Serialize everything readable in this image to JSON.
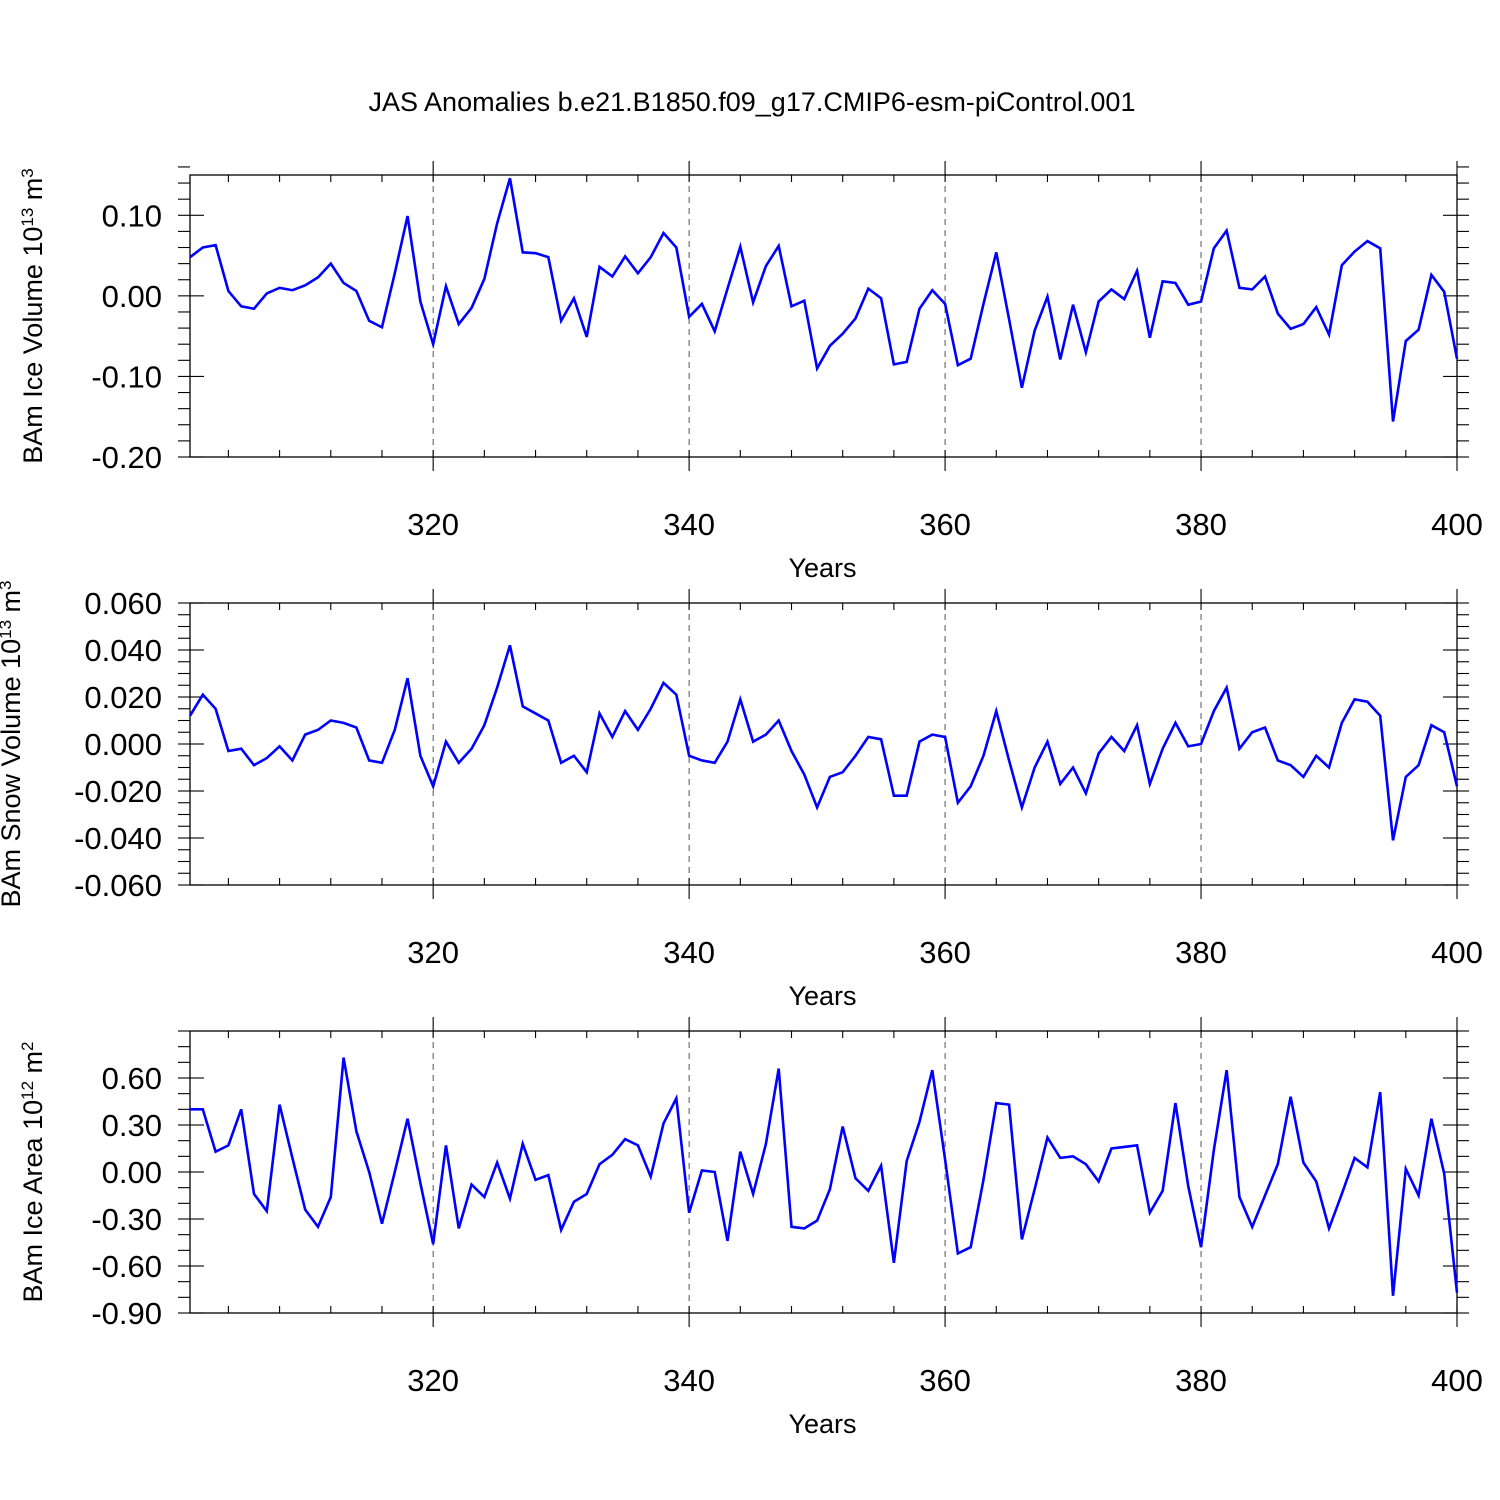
{
  "title": "JAS Anomalies b.e21.B1850.f09_g17.CMIP6-esm-piControl.001",
  "colors": {
    "series": "#0000ff",
    "axes": "#000000",
    "reference_lines": "#555555"
  },
  "chart_data": [
    {
      "type": "line",
      "name": "ice-volume",
      "ylabel": {
        "main": "BAm Ice Volume 10",
        "sup1": "13",
        "mid": " m",
        "sup2": "3"
      },
      "xlabel": "Years",
      "xlim": [
        301,
        400
      ],
      "ylim": [
        -0.2,
        0.15
      ],
      "yticks": [
        -0.2,
        -0.1,
        0.0,
        0.1
      ],
      "ytick_labels": [
        "-0.20",
        "-0.10",
        "0.00",
        "0.10"
      ],
      "xticks": [
        320,
        340,
        360,
        380,
        400
      ],
      "xtick_labels": [
        "320",
        "340",
        "360",
        "380",
        "400"
      ],
      "x_minor_step": 4,
      "y_minor_step": 0.02,
      "reference_lines_x": [
        320,
        340,
        360,
        380
      ],
      "x_start": 301,
      "values": [
        0.048,
        0.06,
        0.063,
        0.006,
        -0.013,
        -0.016,
        0.003,
        0.01,
        0.007,
        0.013,
        0.023,
        0.04,
        0.016,
        0.006,
        -0.031,
        -0.039,
        0.028,
        0.099,
        -0.007,
        -0.06,
        0.012,
        -0.035,
        -0.015,
        0.021,
        0.09,
        0.146,
        0.054,
        0.053,
        0.048,
        -0.031,
        -0.003,
        -0.051,
        0.036,
        0.024,
        0.049,
        0.028,
        0.048,
        0.078,
        0.06,
        -0.026,
        -0.01,
        -0.044,
        0.009,
        0.061,
        -0.008,
        0.037,
        0.062,
        -0.013,
        -0.006,
        -0.09,
        -0.062,
        -0.047,
        -0.028,
        0.009,
        -0.003,
        -0.085,
        -0.082,
        -0.016,
        0.007,
        -0.01,
        -0.086,
        -0.078,
        -0.01,
        0.054,
        -0.029,
        -0.114,
        -0.043,
        -0.001,
        -0.079,
        -0.011,
        -0.07,
        -0.007,
        0.008,
        -0.004,
        0.031,
        -0.052,
        0.018,
        0.016,
        -0.011,
        -0.007,
        0.059,
        0.081,
        0.01,
        0.008,
        0.024,
        -0.022,
        -0.041,
        -0.035,
        -0.014,
        -0.048,
        0.038,
        0.055,
        0.068,
        0.059,
        -0.156,
        -0.056,
        -0.042,
        0.026,
        0.005,
        -0.078
      ]
    },
    {
      "type": "line",
      "name": "snow-volume",
      "ylabel": {
        "main": "BAm Snow Volume 10",
        "sup1": "13",
        "mid": " m",
        "sup2": "3"
      },
      "xlabel": "Years",
      "xlim": [
        301,
        400
      ],
      "ylim": [
        -0.06,
        0.06
      ],
      "yticks": [
        -0.06,
        -0.04,
        -0.02,
        0.0,
        0.02,
        0.04,
        0.06
      ],
      "ytick_labels": [
        "-0.060",
        "-0.040",
        "-0.020",
        "0.000",
        "0.020",
        "0.040",
        "0.060"
      ],
      "xticks": [
        320,
        340,
        360,
        380,
        400
      ],
      "xtick_labels": [
        "320",
        "340",
        "360",
        "380",
        "400"
      ],
      "x_minor_step": 4,
      "y_minor_step": 0.005,
      "reference_lines_x": [
        320,
        340,
        360,
        380
      ],
      "x_start": 301,
      "values": [
        0.012,
        0.021,
        0.015,
        -0.003,
        -0.002,
        -0.009,
        -0.006,
        -0.001,
        -0.007,
        0.004,
        0.006,
        0.01,
        0.009,
        0.007,
        -0.007,
        -0.008,
        0.006,
        0.028,
        -0.005,
        -0.018,
        0.001,
        -0.008,
        -0.002,
        0.008,
        0.024,
        0.042,
        0.016,
        0.013,
        0.01,
        -0.008,
        -0.005,
        -0.012,
        0.013,
        0.003,
        0.014,
        0.006,
        0.015,
        0.026,
        0.021,
        -0.005,
        -0.007,
        -0.008,
        0.001,
        0.019,
        0.001,
        0.004,
        0.01,
        -0.003,
        -0.013,
        -0.027,
        -0.014,
        -0.012,
        -0.005,
        0.003,
        0.002,
        -0.022,
        -0.022,
        0.001,
        0.004,
        0.003,
        -0.025,
        -0.018,
        -0.005,
        0.014,
        -0.007,
        -0.027,
        -0.01,
        0.001,
        -0.017,
        -0.01,
        -0.021,
        -0.004,
        0.003,
        -0.003,
        0.008,
        -0.017,
        -0.002,
        0.009,
        -0.001,
        0.0,
        0.014,
        0.024,
        -0.002,
        0.005,
        0.007,
        -0.007,
        -0.009,
        -0.014,
        -0.005,
        -0.01,
        0.009,
        0.019,
        0.018,
        0.012,
        -0.041,
        -0.014,
        -0.009,
        0.008,
        0.005,
        -0.018
      ]
    },
    {
      "type": "line",
      "name": "ice-area",
      "ylabel": {
        "main": "BAm Ice Area 10",
        "sup1": "12",
        "mid": " m",
        "sup2": "2"
      },
      "xlabel": "Years",
      "xlim": [
        301,
        400
      ],
      "ylim": [
        -0.9,
        0.9
      ],
      "yticks": [
        -0.9,
        -0.6,
        -0.3,
        0.0,
        0.3,
        0.6
      ],
      "ytick_labels": [
        "-0.90",
        "-0.60",
        "-0.30",
        "0.00",
        "0.30",
        "0.60"
      ],
      "xticks": [
        320,
        340,
        360,
        380,
        400
      ],
      "xtick_labels": [
        "320",
        "340",
        "360",
        "380",
        "400"
      ],
      "x_minor_step": 4,
      "y_minor_step": 0.1,
      "reference_lines_x": [
        320,
        340,
        360,
        380
      ],
      "x_start": 301,
      "values": [
        0.4,
        0.4,
        0.13,
        0.17,
        0.4,
        -0.14,
        -0.25,
        0.43,
        0.09,
        -0.24,
        -0.35,
        -0.16,
        0.73,
        0.26,
        0.0,
        -0.33,
        0.0,
        0.34,
        -0.07,
        -0.46,
        0.17,
        -0.36,
        -0.08,
        -0.16,
        0.06,
        -0.17,
        0.18,
        -0.05,
        -0.02,
        -0.37,
        -0.19,
        -0.14,
        0.05,
        0.11,
        0.21,
        0.17,
        -0.03,
        0.31,
        0.47,
        -0.26,
        0.01,
        0.0,
        -0.44,
        0.13,
        -0.14,
        0.18,
        0.66,
        -0.35,
        -0.36,
        -0.31,
        -0.11,
        0.29,
        -0.04,
        -0.12,
        0.04,
        -0.58,
        0.07,
        0.32,
        0.65,
        0.08,
        -0.52,
        -0.48,
        -0.05,
        0.44,
        0.43,
        -0.43,
        -0.11,
        0.22,
        0.09,
        0.1,
        0.05,
        -0.06,
        0.15,
        0.16,
        0.17,
        -0.26,
        -0.12,
        0.44,
        -0.09,
        -0.48,
        0.14,
        0.65,
        -0.16,
        -0.35,
        -0.15,
        0.05,
        0.48,
        0.06,
        -0.06,
        -0.36,
        -0.14,
        0.09,
        0.03,
        0.51,
        -0.79,
        0.02,
        -0.15,
        0.34,
        -0.01,
        -0.77
      ]
    }
  ]
}
